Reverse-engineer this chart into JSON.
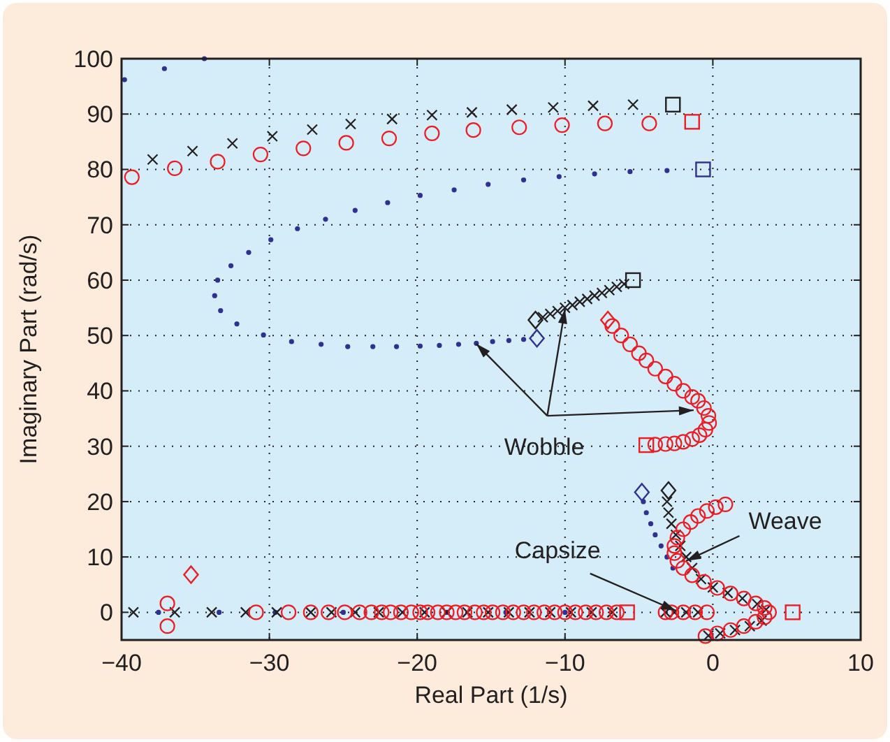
{
  "chart_data": {
    "type": "scatter",
    "xlabel": "Real Part (1/s)",
    "ylabel": "Imaginary Part (rad/s)",
    "xlim": [
      -40,
      10
    ],
    "xticks": [
      {
        "value": -40,
        "label": "−40"
      },
      {
        "value": -30,
        "label": "−30"
      },
      {
        "value": -20,
        "label": "−20"
      },
      {
        "value": -10,
        "label": "−10"
      },
      0,
      10
    ],
    "ylim": [
      -5,
      100
    ],
    "yticks": [
      0,
      10,
      20,
      30,
      40,
      50,
      60,
      70,
      80,
      90,
      100
    ],
    "grid": true,
    "series": [
      {
        "color": "#2e3192",
        "marker": "point",
        "x": [
          -39.8,
          -37.1,
          -34.4,
          -33.7,
          -33.5,
          -32.6,
          -31.4,
          -29.9,
          -28.1,
          -26.2,
          -24.2,
          -22.0,
          -19.8,
          -17.5,
          -15.2,
          -12.8,
          -10.4,
          -8.0,
          -5.6,
          -3.1,
          -33.3,
          -32.2,
          -30.4,
          -28.5,
          -26.5,
          -24.7,
          -23.0,
          -21.4,
          -19.8,
          -18.5,
          -17.2,
          -16.0,
          -14.9,
          -13.8,
          -12.8,
          -4.7,
          -4.5,
          -4.2,
          -3.9,
          -3.5,
          -3.1,
          -2.7,
          -37.5,
          -33.4,
          -29.6,
          -25.0,
          -18.0,
          -14.0,
          -10.0
        ],
        "values": [
          96.2,
          98.2,
          100,
          57.2,
          60,
          62.6,
          65,
          67.3,
          69.3,
          71,
          72.6,
          74,
          75.3,
          76.3,
          77.3,
          78.1,
          78.7,
          79.2,
          79.6,
          79.8,
          54.5,
          52.1,
          50.1,
          48.9,
          48.4,
          48.0,
          48.0,
          48.0,
          48.1,
          48.2,
          48.4,
          48.6,
          48.9,
          49.1,
          49.3,
          20,
          18,
          16,
          14,
          12,
          10,
          8,
          0,
          0,
          0,
          0,
          0,
          0,
          0
        ]
      },
      {
        "color": "#231f20",
        "marker": "cross",
        "x": [
          -37.9,
          -35.2,
          -32.5,
          -29.8,
          -27.1,
          -24.5,
          -21.7,
          -19.0,
          -16.3,
          -13.6,
          -10.8,
          -8.1,
          -5.4,
          -11.5,
          -11,
          -10.5,
          -10,
          -9.5,
          -9,
          -8.5,
          -8,
          -7.5,
          -7,
          -6.5,
          -6,
          -3.1,
          -3.0,
          -2.8,
          -2.5,
          -2.2,
          -1.8,
          -1.4,
          -0.8,
          0,
          1,
          2,
          3,
          3.6,
          3.3,
          2.5,
          1.5,
          0.5,
          -0.3,
          -39.2,
          -36.4,
          -33.9,
          -31.6,
          -29.5,
          -27.2,
          -25.8,
          -24.2,
          -22.6,
          -21.0,
          -19.5,
          -18.0,
          -16.6,
          -15.2,
          -13.8,
          -12.4,
          -11.0,
          -9.6,
          -8.2,
          -6.8,
          -3.2,
          -2.6,
          -1.8,
          -1.0
        ],
        "values": [
          81.8,
          83.3,
          84.7,
          86.0,
          87.2,
          88.2,
          89.1,
          89.8,
          90.3,
          90.8,
          91.2,
          91.5,
          91.7,
          53.3,
          53.9,
          54.4,
          55.0,
          55.5,
          56.1,
          56.6,
          57.2,
          57.7,
          58.2,
          58.8,
          59.3,
          20,
          18,
          16,
          14,
          12,
          10,
          8,
          6,
          4.5,
          3.5,
          2.5,
          1.5,
          0.5,
          -1.5,
          -2.5,
          -3.2,
          -3.8,
          -4.2,
          0,
          0,
          0,
          0,
          0,
          0,
          0,
          0,
          0,
          0,
          0,
          0,
          0,
          0,
          0,
          0,
          0,
          0,
          0,
          0,
          0,
          0,
          0,
          0
        ]
      },
      {
        "color": "#ed1c24",
        "marker": "circle",
        "x": [
          -39.3,
          -36.4,
          -33.5,
          -30.6,
          -27.7,
          -24.8,
          -21.9,
          -19.0,
          -16.2,
          -13.1,
          -10.2,
          -7.3,
          -4.3,
          -6.8,
          -6.2,
          -5.6,
          -5.0,
          -4.5,
          -3.9,
          -3.2,
          -2.6,
          -2.0,
          -1.4,
          -1.0,
          -0.6,
          -0.3,
          -0.25,
          -0.5,
          -0.9,
          -1.4,
          -2.0,
          -2.6,
          -3.2,
          -3.9,
          0.85,
          0.2,
          -0.4,
          -1.0,
          -1.5,
          -2.0,
          -2.4,
          -2.6,
          -2.6,
          -2.4,
          -2.0,
          -1.4,
          -0.6,
          0.3,
          1.2,
          2.1,
          2.9,
          3.5,
          3.8,
          3.5,
          2.9,
          2.1,
          1.2,
          0.3,
          -0.5,
          -36.9,
          -36.9,
          -30.9,
          -28.7,
          -27.2,
          -26.0,
          -24.9,
          -23.9,
          -23.1,
          -22.4,
          -21.8,
          -21.1,
          -20.4,
          -19.8,
          -19.3,
          -18.6,
          -18.0,
          -17.4,
          -16.8,
          -16.1,
          -15.5,
          -14.9,
          -14.2,
          -13.5,
          -12.8,
          -12.1,
          -11.4,
          -10.7,
          -10.0,
          -9.3,
          -8.6,
          -7.9,
          -7.2,
          -6.5,
          -3.2,
          -2.8,
          -2.0,
          -1.2,
          -0.4
        ],
        "values": [
          78.6,
          80.2,
          81.4,
          82.7,
          83.8,
          84.8,
          85.6,
          86.5,
          87.1,
          87.6,
          88.0,
          88.3,
          88.3,
          51.7,
          50,
          48.4,
          46.8,
          45.5,
          44,
          42.6,
          41.3,
          40,
          38.9,
          38.2,
          36.9,
          35.5,
          34.2,
          33,
          32,
          31.3,
          30.8,
          30.5,
          30.4,
          30.3,
          19.5,
          19,
          18.3,
          17.4,
          16.3,
          15,
          13.5,
          12,
          10.7,
          9.3,
          8,
          6.7,
          5.5,
          4.4,
          3.4,
          2.5,
          1.6,
          0.8,
          0,
          -0.9,
          -1.7,
          -2.5,
          -3.2,
          -3.8,
          -4.3,
          1.6,
          -2.5,
          0,
          0,
          0,
          0,
          0,
          0,
          0,
          0,
          0,
          0,
          0,
          0,
          0,
          0,
          0,
          0,
          0,
          0,
          0,
          0,
          0,
          0,
          0,
          0,
          0,
          0,
          0,
          0,
          0,
          0,
          0,
          0,
          0,
          0,
          0,
          0,
          0
        ]
      },
      {
        "color": "#2e3192",
        "marker": "square",
        "x": [
          -0.66
        ],
        "values": [
          80.0
        ]
      },
      {
        "color": "#231f20",
        "marker": "square",
        "x": [
          -2.7,
          -5.4
        ],
        "values": [
          91.7,
          60.0
        ]
      },
      {
        "color": "#ed1c24",
        "marker": "square",
        "x": [
          -1.4,
          -4.5,
          -5.8,
          5.4
        ],
        "values": [
          88.6,
          30.2,
          0,
          0
        ]
      },
      {
        "color": "#2e3192",
        "marker": "diamond",
        "x": [
          -11.9,
          -4.8
        ],
        "values": [
          49.5,
          21.7
        ]
      },
      {
        "color": "#231f20",
        "marker": "diamond",
        "x": [
          -12.0,
          -3.0
        ],
        "values": [
          52.8,
          22.0
        ]
      },
      {
        "color": "#ed1c24",
        "marker": "diamond",
        "x": [
          -35.3,
          -7.1
        ],
        "values": [
          6.8,
          52.8
        ]
      }
    ],
    "annotations": [
      {
        "text": "Wobble",
        "x": -1.3,
        "y": 36.5
      },
      {
        "text": "Weave",
        "x": -1.8,
        "y": 9.3
      },
      {
        "text": "Capsize",
        "x": -2.5,
        "y": 0.3
      }
    ]
  }
}
